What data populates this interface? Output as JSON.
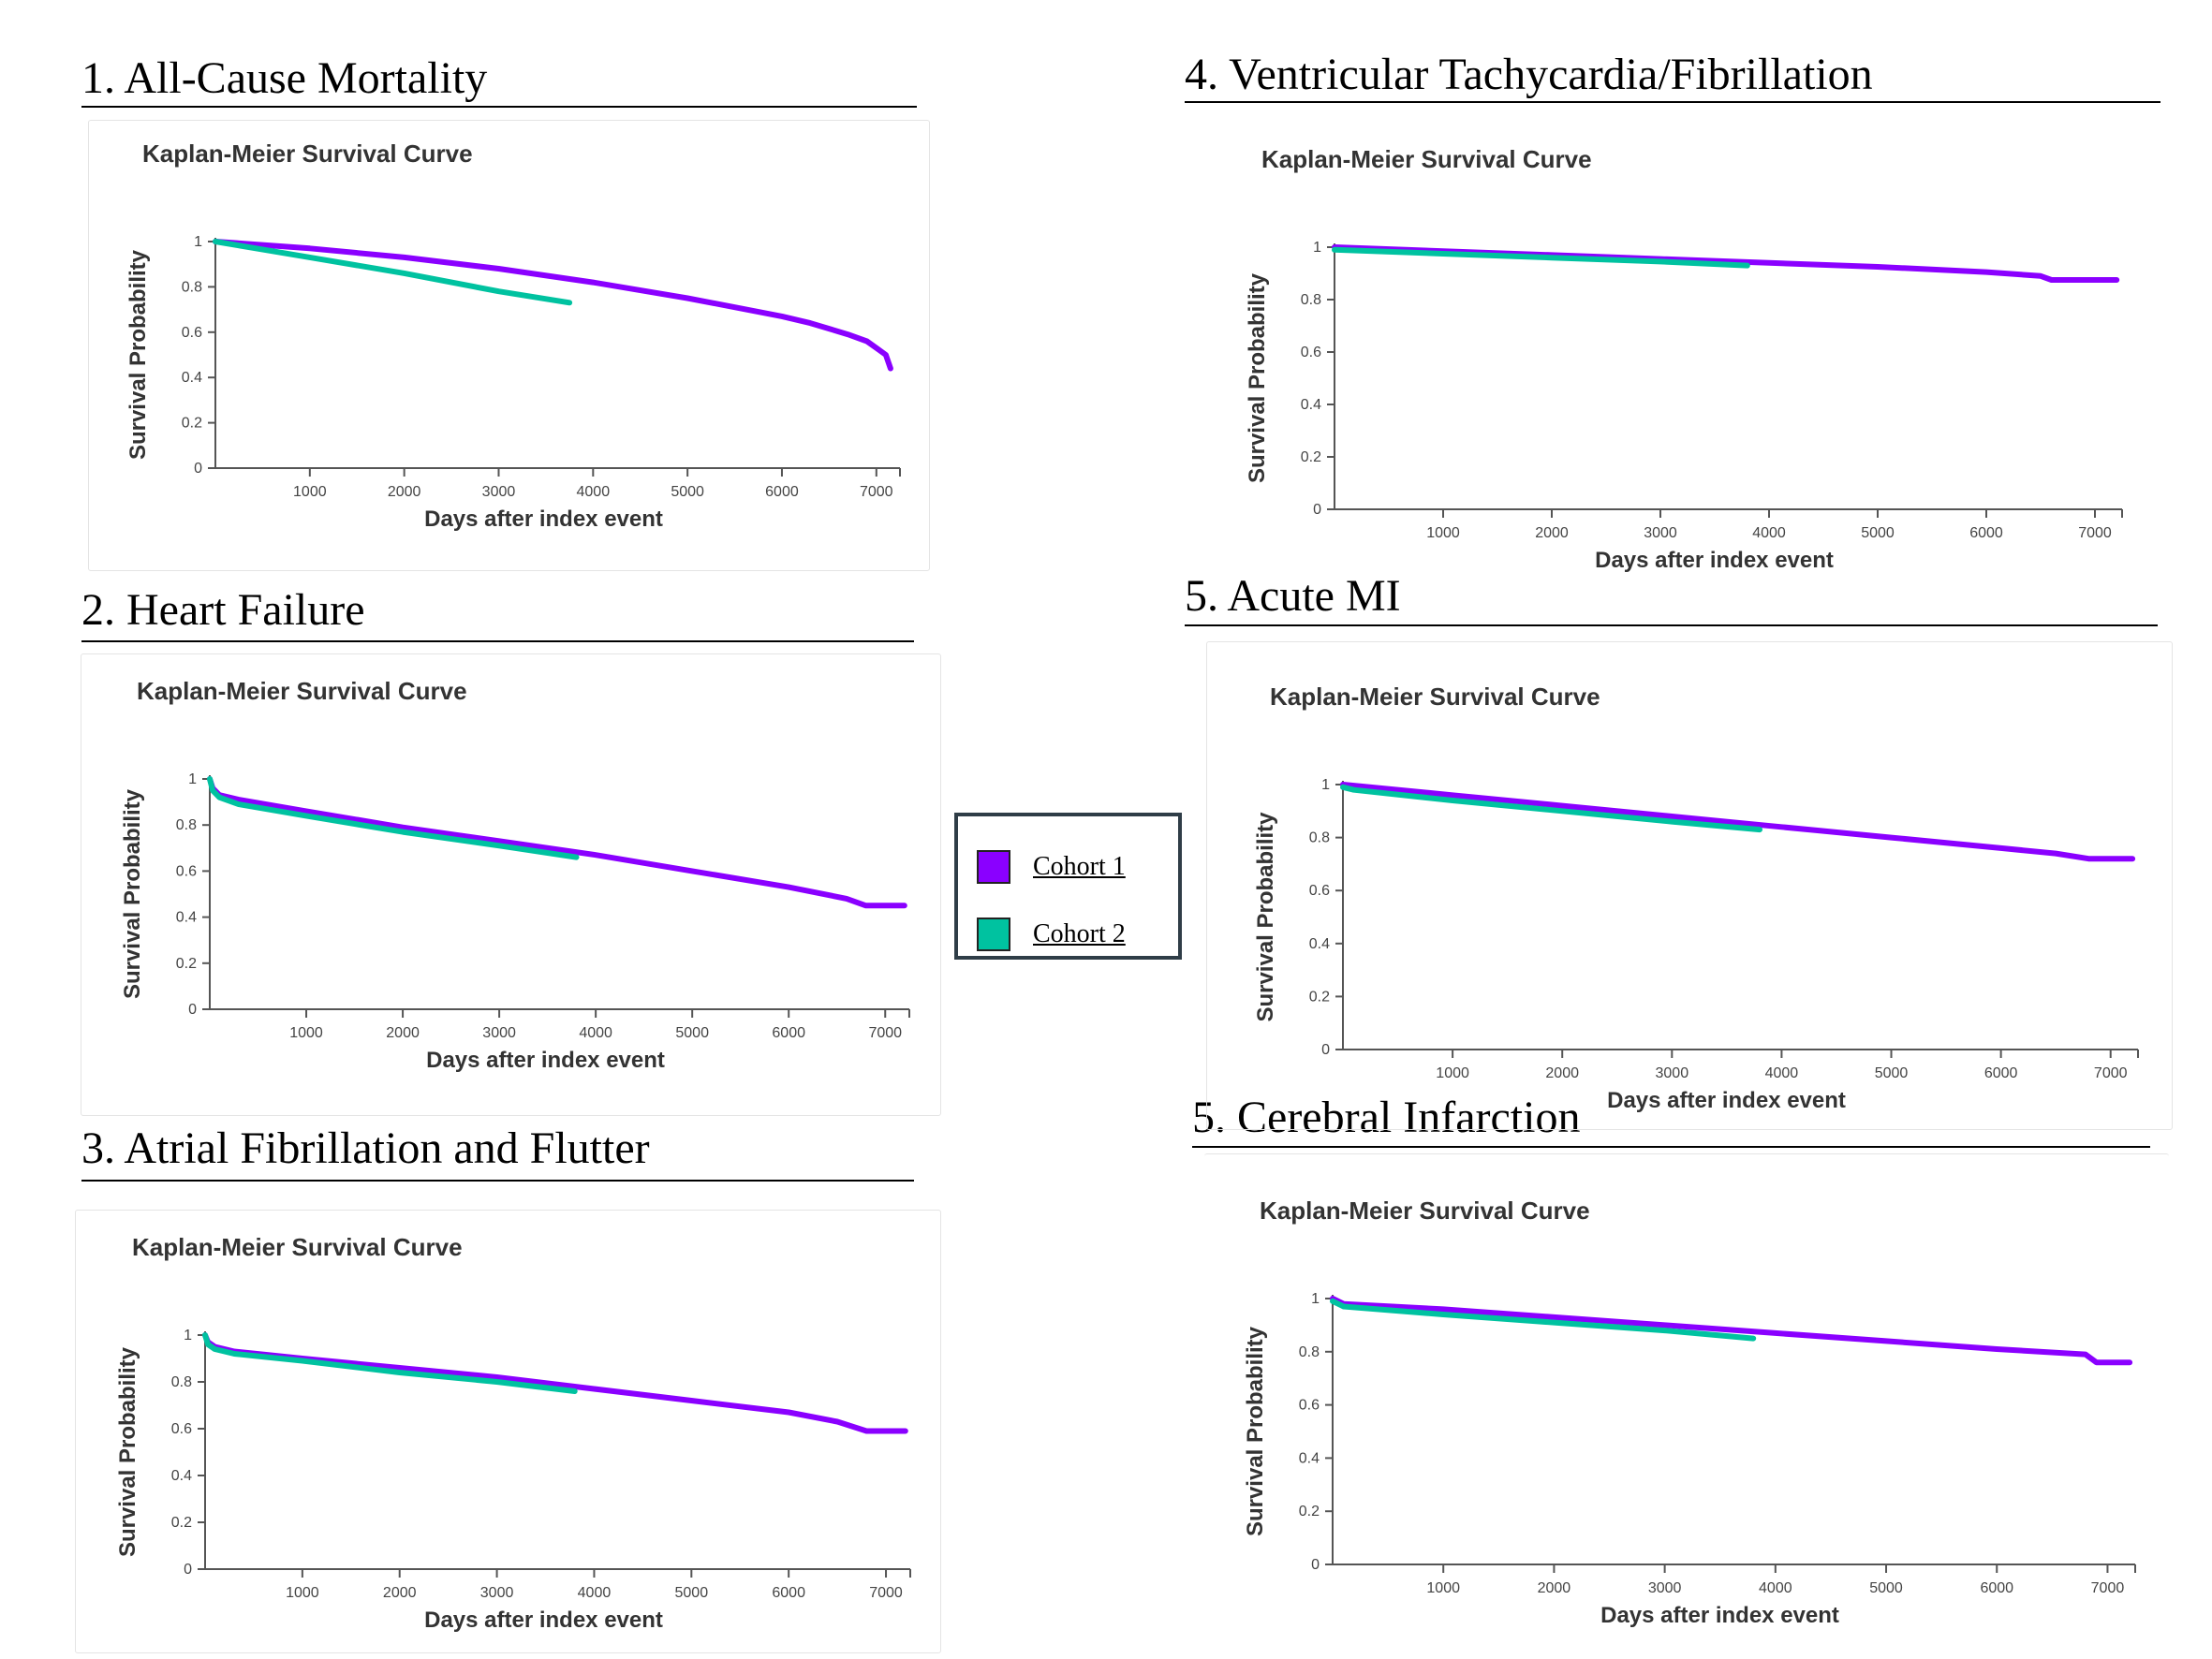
{
  "colors": {
    "cohort1": "#8a00ff",
    "cohort2": "#00c2a0",
    "axis": "#555555"
  },
  "legend": {
    "items": [
      {
        "label": "Cohort 1",
        "color": "#8a00ff"
      },
      {
        "label": "Cohort 2",
        "color": "#00c2a0"
      }
    ]
  },
  "chart_data": [
    {
      "section_title": "1. All-Cause Mortality",
      "type": "line",
      "title": "Kaplan-Meier Survival Curve",
      "xlabel": "Days after index event",
      "ylabel": "Survival Probability",
      "yticks": [
        "1",
        "0.8",
        "0.6",
        "0.4",
        "0.2",
        "0"
      ],
      "xticks": [
        "1000",
        "2000",
        "3000",
        "4000",
        "5000",
        "6000",
        "7000"
      ],
      "xlim": [
        0,
        7250
      ],
      "ylim": [
        0,
        1
      ],
      "series": [
        {
          "name": "Cohort 1",
          "x": [
            0,
            1000,
            2000,
            3000,
            4000,
            5000,
            6000,
            6300,
            6700,
            6900,
            7000,
            7100,
            7150
          ],
          "y": [
            1.0,
            0.97,
            0.93,
            0.88,
            0.82,
            0.75,
            0.67,
            0.64,
            0.59,
            0.56,
            0.53,
            0.5,
            0.44
          ]
        },
        {
          "name": "Cohort 2",
          "x": [
            0,
            1000,
            2000,
            3000,
            3750
          ],
          "y": [
            1.0,
            0.93,
            0.86,
            0.78,
            0.73
          ]
        }
      ]
    },
    {
      "section_title": "2. Heart Failure",
      "type": "line",
      "title": "Kaplan-Meier Survival Curve",
      "xlabel": "Days after index event",
      "ylabel": "Survival Probability",
      "yticks": [
        "1",
        "0.8",
        "0.6",
        "0.4",
        "0.2",
        "0"
      ],
      "xticks": [
        "1000",
        "2000",
        "3000",
        "4000",
        "5000",
        "6000",
        "7000"
      ],
      "xlim": [
        0,
        7250
      ],
      "ylim": [
        0,
        1
      ],
      "series": [
        {
          "name": "Cohort 1",
          "x": [
            0,
            30,
            100,
            300,
            1000,
            2000,
            3000,
            4000,
            5000,
            6000,
            6600,
            6800,
            7200
          ],
          "y": [
            1.0,
            0.96,
            0.93,
            0.91,
            0.86,
            0.79,
            0.73,
            0.67,
            0.6,
            0.53,
            0.48,
            0.45,
            0.45
          ]
        },
        {
          "name": "Cohort 2",
          "x": [
            0,
            30,
            100,
            300,
            1000,
            2000,
            3000,
            3800
          ],
          "y": [
            1.0,
            0.95,
            0.92,
            0.89,
            0.84,
            0.77,
            0.71,
            0.66
          ]
        }
      ]
    },
    {
      "section_title": "3. Atrial Fibrillation and Flutter",
      "type": "line",
      "title": "Kaplan-Meier Survival Curve",
      "xlabel": "Days after index event",
      "ylabel": "Survival Probability",
      "yticks": [
        "1",
        "0.8",
        "0.6",
        "0.4",
        "0.2",
        "0"
      ],
      "xticks": [
        "1000",
        "2000",
        "3000",
        "4000",
        "5000",
        "6000",
        "7000"
      ],
      "xlim": [
        0,
        7250
      ],
      "ylim": [
        0,
        1
      ],
      "series": [
        {
          "name": "Cohort 1",
          "x": [
            0,
            30,
            100,
            300,
            1000,
            2000,
            3000,
            4000,
            5000,
            6000,
            6500,
            6800,
            7200
          ],
          "y": [
            1.0,
            0.97,
            0.95,
            0.93,
            0.9,
            0.86,
            0.82,
            0.77,
            0.72,
            0.67,
            0.63,
            0.59,
            0.59
          ]
        },
        {
          "name": "Cohort 2",
          "x": [
            0,
            30,
            100,
            300,
            1000,
            2000,
            3000,
            3800
          ],
          "y": [
            1.0,
            0.96,
            0.94,
            0.92,
            0.89,
            0.84,
            0.8,
            0.76
          ]
        }
      ]
    },
    {
      "section_title": "4. Ventricular Tachycardia/Fibrillation",
      "type": "line",
      "title": "Kaplan-Meier Survival Curve",
      "xlabel": "Days after index event",
      "ylabel": "Survival Probability",
      "yticks": [
        "1",
        "0.8",
        "0.6",
        "0.4",
        "0.2",
        "0"
      ],
      "xticks": [
        "1000",
        "2000",
        "3000",
        "4000",
        "5000",
        "6000",
        "7000"
      ],
      "xlim": [
        0,
        7250
      ],
      "ylim": [
        0,
        1
      ],
      "series": [
        {
          "name": "Cohort 1",
          "x": [
            0,
            1000,
            2000,
            3000,
            4000,
            5000,
            6000,
            6500,
            6600,
            7200
          ],
          "y": [
            1.0,
            0.985,
            0.97,
            0.955,
            0.94,
            0.925,
            0.905,
            0.89,
            0.875,
            0.875
          ]
        },
        {
          "name": "Cohort 2",
          "x": [
            0,
            1000,
            2000,
            3000,
            3800
          ],
          "y": [
            0.99,
            0.975,
            0.96,
            0.945,
            0.93
          ]
        }
      ]
    },
    {
      "section_title": "5. Acute MI",
      "type": "line",
      "title": "Kaplan-Meier Survival Curve",
      "xlabel": "Days after index event",
      "ylabel": "Survival Probability",
      "yticks": [
        "1",
        "0.8",
        "0.6",
        "0.4",
        "0.2",
        "0"
      ],
      "xticks": [
        "1000",
        "2000",
        "3000",
        "4000",
        "5000",
        "6000",
        "7000"
      ],
      "xlim": [
        0,
        7250
      ],
      "ylim": [
        0,
        1
      ],
      "series": [
        {
          "name": "Cohort 1",
          "x": [
            0,
            1000,
            2000,
            3000,
            4000,
            5000,
            6000,
            6500,
            6800,
            7200
          ],
          "y": [
            1.0,
            0.96,
            0.92,
            0.88,
            0.84,
            0.8,
            0.76,
            0.74,
            0.72,
            0.72
          ]
        },
        {
          "name": "Cohort 2",
          "x": [
            0,
            100,
            1000,
            2000,
            3000,
            3800
          ],
          "y": [
            0.99,
            0.98,
            0.94,
            0.9,
            0.86,
            0.83
          ]
        }
      ]
    },
    {
      "section_title": "5. Cerebral Infarction",
      "type": "line",
      "title": "Kaplan-Meier Survival Curve",
      "xlabel": "Days after index event",
      "ylabel": "Survival Probability",
      "yticks": [
        "1",
        "0.8",
        "0.6",
        "0.4",
        "0.2",
        "0"
      ],
      "xticks": [
        "1000",
        "2000",
        "3000",
        "4000",
        "5000",
        "6000",
        "7000"
      ],
      "xlim": [
        0,
        7250
      ],
      "ylim": [
        0,
        1
      ],
      "series": [
        {
          "name": "Cohort 1",
          "x": [
            0,
            100,
            1000,
            2000,
            3000,
            4000,
            5000,
            6000,
            6800,
            6900,
            7200
          ],
          "y": [
            1.0,
            0.98,
            0.96,
            0.93,
            0.9,
            0.87,
            0.84,
            0.81,
            0.79,
            0.76,
            0.76
          ]
        },
        {
          "name": "Cohort 2",
          "x": [
            0,
            100,
            1000,
            2000,
            3000,
            3800
          ],
          "y": [
            0.99,
            0.97,
            0.94,
            0.91,
            0.88,
            0.85
          ]
        }
      ]
    }
  ]
}
